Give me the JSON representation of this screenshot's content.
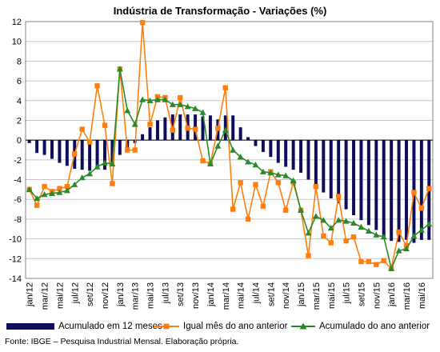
{
  "title": "Indústria de Transformação - Variações (%)",
  "source": "Fonte: IBGE – Pesquisa Industrial Mensal. Elaboração própria.",
  "colors": {
    "bars": "#0d0d5e",
    "monthly": "#ff7f0e",
    "ytd": "#2a8a2a",
    "grid": "#c8c8c8"
  },
  "legend": [
    {
      "label": "Acumulado em 12 meses",
      "series": "bars"
    },
    {
      "label": "Igual mês do ano anterior",
      "series": "monthly"
    },
    {
      "label": "Acumulado do ano anterior",
      "series": "ytd"
    }
  ],
  "chart_data": {
    "type": "bar",
    "ylim": [
      -14,
      12
    ],
    "yticks": [
      12,
      10,
      8,
      6,
      4,
      2,
      0,
      -2,
      -4,
      -6,
      -8,
      -10,
      -12,
      -14
    ],
    "grid": true,
    "legend_position": "bottom",
    "x_tick_labels": [
      "jan/12",
      "mar/12",
      "mai/12",
      "jul/12",
      "set/12",
      "nov/12",
      "jan/13",
      "mar/13",
      "mai/13",
      "jul/13",
      "set/13",
      "nov/13",
      "jan/14",
      "mar/14",
      "mai/14",
      "jul/14",
      "set/14",
      "nov/14",
      "jan/15",
      "mar/15",
      "mai/15",
      "jul/15",
      "set/15",
      "nov/15",
      "jan/16",
      "mar/16",
      "mai/16"
    ],
    "categories": [
      "jan/12",
      "fev/12",
      "mar/12",
      "abr/12",
      "mai/12",
      "jun/12",
      "jul/12",
      "ago/12",
      "set/12",
      "out/12",
      "nov/12",
      "dez/12",
      "jan/13",
      "fev/13",
      "mar/13",
      "abr/13",
      "mai/13",
      "jun/13",
      "jul/13",
      "ago/13",
      "set/13",
      "out/13",
      "nov/13",
      "dez/13",
      "jan/14",
      "fev/14",
      "mar/14",
      "abr/14",
      "mai/14",
      "jun/14",
      "jul/14",
      "ago/14",
      "set/14",
      "out/14",
      "nov/14",
      "dez/14",
      "jan/15",
      "fev/15",
      "mar/15",
      "abr/15",
      "mai/15",
      "jun/15",
      "jul/15",
      "ago/15",
      "set/15",
      "out/15",
      "nov/15",
      "dez/15",
      "jan/16",
      "fev/16",
      "mar/16",
      "abr/16",
      "mai/16",
      "jun/16"
    ],
    "series": [
      {
        "name": "Acumulado em 12 meses",
        "type": "bar",
        "values": [
          -0.3,
          -1.3,
          -1.5,
          -1.9,
          -2.3,
          -2.6,
          -2.9,
          -3.0,
          -3.1,
          -2.9,
          -3.0,
          -2.5,
          -1.5,
          -0.8,
          -0.3,
          0.6,
          1.3,
          2.0,
          2.3,
          2.6,
          2.6,
          2.6,
          2.6,
          2.4,
          2.5,
          2.1,
          2.5,
          2.5,
          1.3,
          0.3,
          -0.6,
          -1.2,
          -1.7,
          -2.3,
          -2.7,
          -3.0,
          -3.3,
          -4.0,
          -4.6,
          -5.3,
          -5.9,
          -6.4,
          -7.0,
          -7.6,
          -8.1,
          -8.6,
          -9.1,
          -9.8,
          -10.2,
          -10.3,
          -10.1,
          -10.4,
          -10.1,
          -10.1
        ]
      },
      {
        "name": "Igual mês do ano anterior",
        "type": "line",
        "values": [
          -5.0,
          -6.6,
          -4.7,
          -5.2,
          -4.9,
          -4.7,
          -1.4,
          1.1,
          -0.2,
          5.5,
          1.5,
          -4.4,
          7.2,
          -1.0,
          -1.0,
          11.9,
          1.6,
          4.4,
          4.3,
          1.0,
          4.3,
          1.2,
          1.1,
          -2.1,
          -2.4,
          1.2,
          5.3,
          -7.0,
          -4.3,
          -8.0,
          -4.5,
          -6.7,
          -3.2,
          -4.3,
          -7.1,
          -4.3,
          -7.1,
          -11.7,
          -4.7,
          -9.7,
          -10.4,
          -5.7,
          -10.2,
          -9.8,
          -12.3,
          -12.3,
          -12.6,
          -12.2,
          -13.0,
          -9.3,
          -10.7,
          -5.3,
          -6.9,
          -4.9
        ]
      },
      {
        "name": "Acumulado do ano anterior",
        "type": "line",
        "values": [
          -5.0,
          -5.9,
          -5.5,
          -5.4,
          -5.3,
          -5.1,
          -4.5,
          -3.8,
          -3.4,
          -2.7,
          -2.3,
          -2.4,
          7.2,
          3.0,
          1.6,
          4.1,
          4.0,
          4.1,
          4.1,
          3.6,
          3.6,
          3.4,
          3.2,
          2.8,
          -2.4,
          -0.6,
          1.0,
          -1.0,
          -1.7,
          -2.2,
          -2.5,
          -3.2,
          -3.3,
          -3.5,
          -3.6,
          -4.1,
          -7.1,
          -9.4,
          -7.7,
          -8.1,
          -8.9,
          -8.1,
          -8.2,
          -8.4,
          -8.8,
          -9.2,
          -9.6,
          -9.8,
          -13.0,
          -11.2,
          -11.0,
          -9.7,
          -9.1,
          -8.5
        ]
      }
    ]
  }
}
